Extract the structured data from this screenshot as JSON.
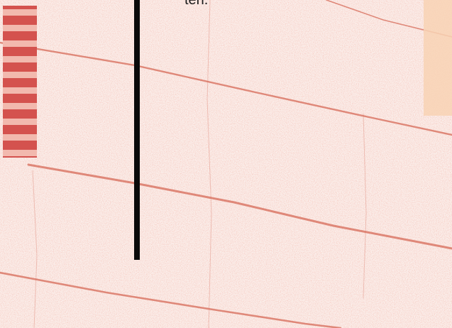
{
  "caption": {
    "text": "ten."
  },
  "colors": {
    "background": "#fbeeea",
    "speckle": "#e9a192",
    "crack_line": "#d8705f",
    "stripe_dark": "#d4524e",
    "stripe_light": "#f2b9ae",
    "bar": "#0a0a0a",
    "peach": "#f8d2b4",
    "text": "#1a1a1a"
  },
  "icons": {
    "stripe_block": "striped-bar-icon"
  }
}
